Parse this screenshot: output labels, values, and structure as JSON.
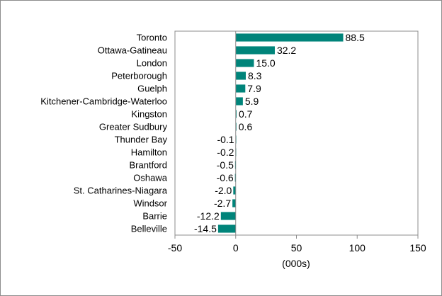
{
  "chart_data": {
    "type": "bar",
    "orientation": "horizontal",
    "categories": [
      "Toronto",
      "Ottawa-Gatineau",
      "London",
      "Peterborough",
      "Guelph",
      "Kitchener-Cambridge-Waterloo",
      "Kingston",
      "Greater Sudbury",
      "Thunder Bay",
      "Hamilton",
      "Brantford",
      "Oshawa",
      "St. Catharines-Niagara",
      "Windsor",
      "Barrie",
      "Belleville"
    ],
    "values": [
      88.5,
      32.2,
      15.0,
      8.3,
      7.9,
      5.9,
      0.7,
      0.6,
      -0.1,
      -0.2,
      -0.5,
      -0.6,
      -2.0,
      -2.7,
      -12.2,
      -14.5
    ],
    "value_labels": [
      "88.5",
      "32.2",
      "15.0",
      "8.3",
      "7.9",
      "5.9",
      "0.7",
      "0.6",
      "-0.1",
      "-0.2",
      "-0.5",
      "-0.6",
      "-2.0",
      "-2.7",
      "-12.2",
      "-14.5"
    ],
    "xlim": [
      -50,
      150
    ],
    "xticks": [
      -50,
      0,
      50,
      100,
      150
    ],
    "xlabel": "(000s)",
    "grid": false,
    "legend": "none",
    "bar_color": "#00847a"
  }
}
